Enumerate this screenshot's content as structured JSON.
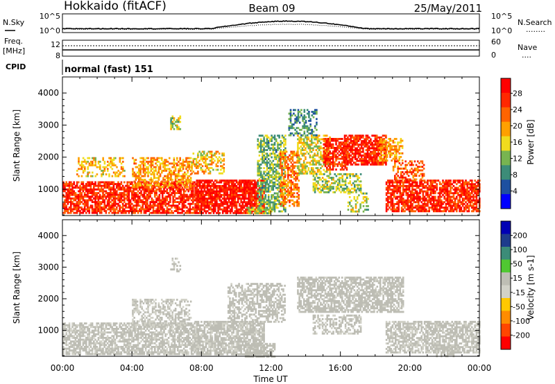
{
  "header": {
    "title_left": "Hokkaido (fitACF)",
    "title_center": "Beam 09",
    "title_right": "25/May/2011"
  },
  "top_panels": {
    "nsky_label": "N.Sky",
    "nsearch_label": "N.Search",
    "nsearch_legend": "........",
    "count_ticks": [
      "10^5",
      "10^0"
    ],
    "freq_label_1": "Freq.",
    "freq_label_2": "[MHz]",
    "freq_ticks": [
      "12",
      "8"
    ],
    "nave_label": "Nave",
    "nave_legend": "....",
    "nave_ticks": [
      "60",
      "0"
    ],
    "cpid_label": "CPID",
    "cpid_text": "normal (fast) 151"
  },
  "colors": {
    "power_scale": [
      "#0000ff",
      "#1e50a0",
      "#3c8c78",
      "#78b450",
      "#f0dc1e",
      "#ffa000",
      "#ff6400",
      "#ff2800",
      "#ff0000"
    ],
    "velocity_scale": [
      "#ff0000",
      "#ff4600",
      "#ff8c00",
      "#ffc800",
      "#d2d2c8",
      "#bebeb4",
      "#50c832",
      "#3c8c78",
      "#1e3c8c",
      "#0000b4"
    ],
    "gray_scatter": "#bdbdb4"
  },
  "chart_data": [
    {
      "type": "heatmap",
      "name": "power-panel",
      "ylabel": "Slant Range [km]",
      "xlabel": "Time UT",
      "x_ticks": [
        "00:00",
        "04:00",
        "08:00",
        "12:00",
        "16:00",
        "20:00",
        "00:00"
      ],
      "x_range_hours": [
        0,
        24
      ],
      "y_ticks": [
        "1000",
        "2000",
        "3000",
        "4000"
      ],
      "ylim": [
        180,
        4500
      ],
      "colorbar": {
        "label": "Power [dB]",
        "ticks": [
          "28",
          "24",
          "20",
          "16",
          "12",
          "8",
          "4"
        ],
        "range": [
          0,
          32
        ]
      },
      "regions": [
        {
          "t0": 0.0,
          "t1": 7.6,
          "r0": 250,
          "r1": 1250,
          "value": 27,
          "density": 0.75
        },
        {
          "t0": 4.0,
          "t1": 7.4,
          "r0": 1100,
          "r1": 2000,
          "value": 20,
          "density": 0.55
        },
        {
          "t0": 0.8,
          "t1": 3.6,
          "r0": 1400,
          "r1": 2000,
          "value": 18,
          "density": 0.35
        },
        {
          "t0": 7.6,
          "t1": 11.6,
          "r0": 250,
          "r1": 1300,
          "value": 29,
          "density": 0.85
        },
        {
          "t0": 7.4,
          "t1": 9.3,
          "r0": 1500,
          "r1": 2200,
          "value": 18,
          "density": 0.45
        },
        {
          "t0": 6.2,
          "t1": 6.8,
          "r0": 2900,
          "r1": 3300,
          "value": 14,
          "density": 0.5
        },
        {
          "t0": 11.2,
          "t1": 12.8,
          "r0": 300,
          "r1": 2700,
          "value": 12,
          "density": 0.6
        },
        {
          "t0": 12.5,
          "t1": 13.6,
          "r0": 500,
          "r1": 2200,
          "value": 22,
          "density": 0.6
        },
        {
          "t0": 13.5,
          "t1": 15.4,
          "r0": 1500,
          "r1": 2700,
          "value": 16,
          "density": 0.55
        },
        {
          "t0": 13.0,
          "t1": 14.6,
          "r0": 2700,
          "r1": 3500,
          "value": 9,
          "density": 0.45
        },
        {
          "t0": 15.0,
          "t1": 16.4,
          "r0": 1600,
          "r1": 2600,
          "value": 27,
          "density": 0.7
        },
        {
          "t0": 16.2,
          "t1": 18.6,
          "r0": 1800,
          "r1": 2700,
          "value": 28,
          "density": 0.8
        },
        {
          "t0": 18.2,
          "t1": 19.6,
          "r0": 1900,
          "r1": 2600,
          "value": 20,
          "density": 0.55
        },
        {
          "t0": 14.4,
          "t1": 17.2,
          "r0": 900,
          "r1": 1500,
          "value": 14,
          "density": 0.55
        },
        {
          "t0": 16.4,
          "t1": 17.6,
          "r0": 300,
          "r1": 900,
          "value": 15,
          "density": 0.4
        },
        {
          "t0": 18.6,
          "t1": 24.0,
          "r0": 300,
          "r1": 1300,
          "value": 27,
          "density": 0.75
        },
        {
          "t0": 19.0,
          "t1": 20.8,
          "r0": 1300,
          "r1": 1900,
          "value": 24,
          "density": 0.45
        },
        {
          "t0": 10.6,
          "t1": 12.0,
          "r0": 250,
          "r1": 450,
          "value": 15,
          "density": 0.6
        }
      ]
    },
    {
      "type": "heatmap",
      "name": "velocity-panel",
      "ylabel": "Slant Range [km]",
      "xlabel": "Time UT",
      "x_ticks": [
        "00:00",
        "04:00",
        "08:00",
        "12:00",
        "16:00",
        "20:00",
        "00:00"
      ],
      "x_range_hours": [
        0,
        24
      ],
      "y_ticks": [
        "1000",
        "2000",
        "3000",
        "4000"
      ],
      "ylim": [
        180,
        4500
      ],
      "colorbar": {
        "label": "Velocity [m s-1]",
        "ticks": [
          "200",
          "100",
          "50",
          "15",
          "-15",
          "-50",
          "-100",
          "-200"
        ],
        "range": [
          -250,
          250
        ]
      },
      "regions": [
        {
          "t0": 0.0,
          "t1": 7.6,
          "r0": 250,
          "r1": 1250,
          "value": -5,
          "density": 0.7
        },
        {
          "t0": 4.0,
          "t1": 7.4,
          "r0": 1100,
          "r1": 2000,
          "value": -10,
          "density": 0.5
        },
        {
          "t0": 7.6,
          "t1": 11.6,
          "r0": 250,
          "r1": 1300,
          "value": -5,
          "density": 0.8
        },
        {
          "t0": 9.5,
          "t1": 12.8,
          "r0": 1300,
          "r1": 2500,
          "value": 0,
          "density": 0.55
        },
        {
          "t0": 13.5,
          "t1": 19.6,
          "r0": 1600,
          "r1": 2700,
          "value": 0,
          "density": 0.7
        },
        {
          "t0": 14.4,
          "t1": 17.2,
          "r0": 900,
          "r1": 1500,
          "value": -5,
          "density": 0.5
        },
        {
          "t0": 18.6,
          "t1": 24.0,
          "r0": 300,
          "r1": 1300,
          "value": -5,
          "density": 0.7
        },
        {
          "t0": 10.5,
          "t1": 12.2,
          "r0": 200,
          "r1": 600,
          "value": 25,
          "density": 0.6
        },
        {
          "t0": 21.5,
          "t1": 22.6,
          "r0": 200,
          "r1": 500,
          "value": 25,
          "density": 0.5
        },
        {
          "t0": 6.2,
          "t1": 6.8,
          "r0": 2900,
          "r1": 3300,
          "value": -5,
          "density": 0.4
        }
      ]
    }
  ]
}
